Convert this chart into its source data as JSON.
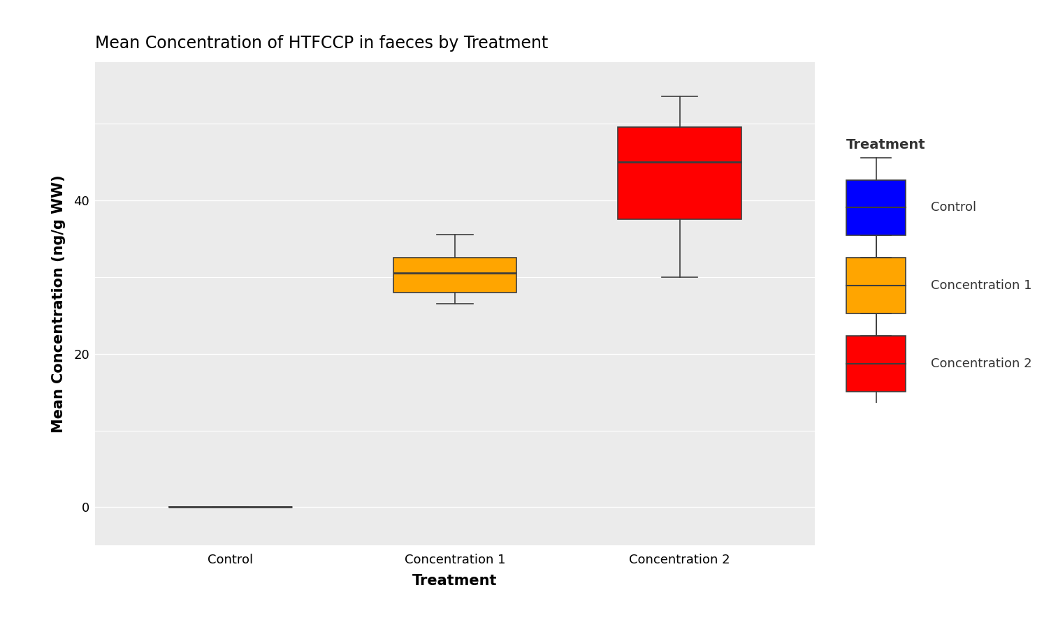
{
  "title": "Mean Concentration of HTFCCP in faeces by Treatment",
  "xlabel": "Treatment",
  "ylabel": "Mean Concentration (ng/g WW)",
  "categories": [
    "Control",
    "Concentration 1",
    "Concentration 2"
  ],
  "colors": [
    "#0000FF",
    "#FFA500",
    "#FF0000"
  ],
  "panel_bg": "#EBEBEB",
  "fig_bg": "#FFFFFF",
  "grid_color": "#FFFFFF",
  "minor_grid_color": "#FFFFFF",
  "ylim": [
    -5,
    58
  ],
  "yticks": [
    0,
    20,
    40
  ],
  "yminor": [
    10,
    30,
    50
  ],
  "boxes": [
    {
      "label": "Control",
      "color": "#0000FF",
      "whislo": 0.0,
      "q1": 0.0,
      "med": 0.0,
      "q3": 0.0,
      "whishi": 0.0,
      "fliers": []
    },
    {
      "label": "Concentration 1",
      "color": "#FFA500",
      "whislo": 26.5,
      "q1": 28.0,
      "med": 30.5,
      "q3": 32.5,
      "whishi": 35.5,
      "fliers": []
    },
    {
      "label": "Concentration 2",
      "color": "#FF0000",
      "whislo": 30.0,
      "q1": 37.5,
      "med": 45.0,
      "q3": 49.5,
      "whishi": 53.5,
      "fliers": []
    }
  ],
  "legend_title": "Treatment",
  "legend_labels": [
    "Control",
    "Concentration 1",
    "Concentration 2"
  ],
  "legend_colors": [
    "#0000FF",
    "#FFA500",
    "#FF0000"
  ],
  "title_fontsize": 17,
  "axis_label_fontsize": 15,
  "tick_fontsize": 13,
  "legend_fontsize": 13,
  "legend_title_fontsize": 14,
  "box_width": 0.55
}
